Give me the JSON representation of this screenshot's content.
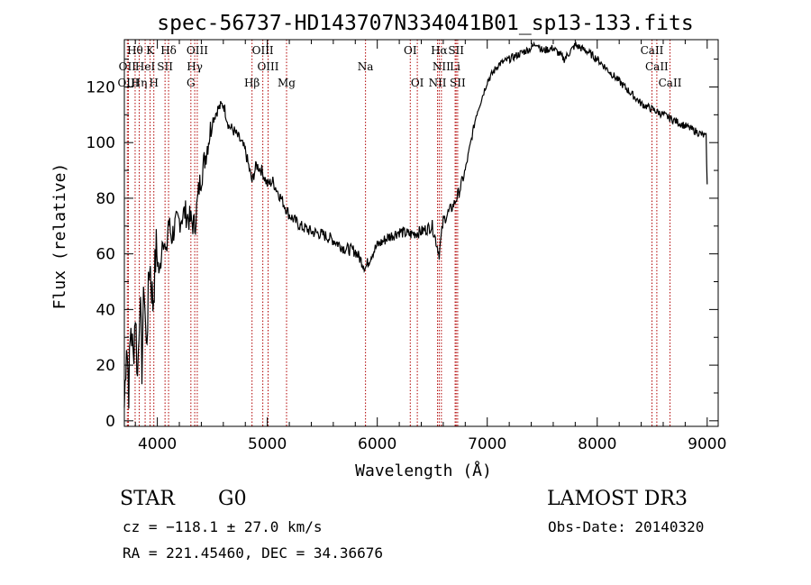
{
  "chart_data": {
    "type": "line",
    "title": "spec-56737-HD143707N334041B01_sp13-133.fits",
    "xlabel": "Wavelength (Å)",
    "ylabel": "Flux (relative)",
    "xlim": [
      3700,
      9100
    ],
    "ylim": [
      -2,
      137
    ],
    "x_ticks": [
      4000,
      5000,
      6000,
      7000,
      8000,
      9000
    ],
    "y_ticks": [
      0,
      20,
      40,
      60,
      80,
      100,
      120
    ],
    "series": [
      {
        "name": "spectrum",
        "x": [
          3700,
          3720,
          3740,
          3760,
          3780,
          3800,
          3820,
          3840,
          3860,
          3880,
          3900,
          3930,
          3960,
          3990,
          4020,
          4050,
          4080,
          4100,
          4130,
          4160,
          4200,
          4250,
          4300,
          4340,
          4380,
          4420,
          4460,
          4500,
          4550,
          4600,
          4650,
          4700,
          4750,
          4800,
          4861,
          4900,
          4950,
          5000,
          5050,
          5100,
          5150,
          5200,
          5300,
          5400,
          5500,
          5600,
          5700,
          5800,
          5893,
          5950,
          6000,
          6100,
          6200,
          6300,
          6400,
          6500,
          6563,
          6600,
          6650,
          6700,
          6750,
          6800,
          6850,
          6900,
          6950,
          7000,
          7100,
          7200,
          7300,
          7400,
          7450,
          7500,
          7600,
          7700,
          7800,
          7900,
          8000,
          8100,
          8200,
          8300,
          8400,
          8500,
          8600,
          8700,
          8800,
          8900,
          8990,
          9000
        ],
        "y": [
          5,
          30,
          12,
          35,
          22,
          40,
          15,
          45,
          20,
          50,
          25,
          58,
          42,
          62,
          52,
          68,
          58,
          72,
          66,
          70,
          72,
          75,
          72,
          70,
          84,
          92,
          100,
          108,
          112,
          114,
          106,
          104,
          101,
          97,
          86,
          92,
          90,
          85,
          86,
          82,
          78,
          74,
          70,
          68,
          67,
          65,
          62,
          61,
          55,
          60,
          63,
          66,
          68,
          67,
          68,
          70,
          60,
          72,
          75,
          78,
          83,
          90,
          100,
          110,
          116,
          122,
          128,
          130,
          132,
          134,
          136,
          133,
          134,
          130,
          135,
          133,
          130,
          126,
          122,
          118,
          114,
          112,
          110,
          108,
          106,
          104,
          102,
          85
        ]
      }
    ],
    "spectral_lines": [
      {
        "name": "Hθ",
        "wl": 3798,
        "row": 0
      },
      {
        "name": "K",
        "wl": 3934,
        "row": 0
      },
      {
        "name": "Hδ",
        "wl": 4102,
        "row": 0
      },
      {
        "name": "OIII",
        "wl": 4363,
        "row": 0
      },
      {
        "name": "OIII",
        "wl": 4959,
        "row": 0
      },
      {
        "name": "OI",
        "wl": 6300,
        "row": 0
      },
      {
        "name": "Hα",
        "wl": 6563,
        "row": 0
      },
      {
        "name": "SII",
        "wl": 6717,
        "row": 0
      },
      {
        "name": "CaII",
        "wl": 8498,
        "row": 0
      },
      {
        "name": "OII",
        "wl": 3727,
        "row": 1
      },
      {
        "name": "HeI",
        "wl": 3889,
        "row": 1
      },
      {
        "name": "SII",
        "wl": 4070,
        "row": 1
      },
      {
        "name": "Hγ",
        "wl": 4340,
        "row": 1
      },
      {
        "name": "OIII",
        "wl": 5007,
        "row": 1
      },
      {
        "name": "Na",
        "wl": 5893,
        "row": 1
      },
      {
        "name": "NII",
        "wl": 6583,
        "row": 1
      },
      {
        "name": "Li",
        "wl": 6708,
        "row": 1
      },
      {
        "name": "CaII",
        "wl": 8542,
        "row": 1
      },
      {
        "name": "OIII",
        "wl": 3737,
        "row": 2
      },
      {
        "name": "Hη",
        "wl": 3835,
        "row": 2
      },
      {
        "name": "H",
        "wl": 3968,
        "row": 2
      },
      {
        "name": "G",
        "wl": 4305,
        "row": 2
      },
      {
        "name": "Hβ",
        "wl": 4861,
        "row": 2
      },
      {
        "name": "Mg",
        "wl": 5175,
        "row": 2
      },
      {
        "name": "OI",
        "wl": 6364,
        "row": 2
      },
      {
        "name": "NII",
        "wl": 6548,
        "row": 2
      },
      {
        "name": "SII",
        "wl": 6731,
        "row": 2
      },
      {
        "name": "CaII",
        "wl": 8662,
        "row": 2
      }
    ]
  },
  "info": {
    "class": "STAR",
    "subclass": "G0",
    "survey": "LAMOST DR3",
    "cz": "cz = −118.1 ± 27.0 km/s",
    "obs_date": "Obs-Date: 20140320",
    "radec": "RA = 221.45460, DEC =  34.36676"
  },
  "colors": {
    "spectrum": "#000000",
    "lines": "#b00000",
    "axes": "#000000"
  }
}
